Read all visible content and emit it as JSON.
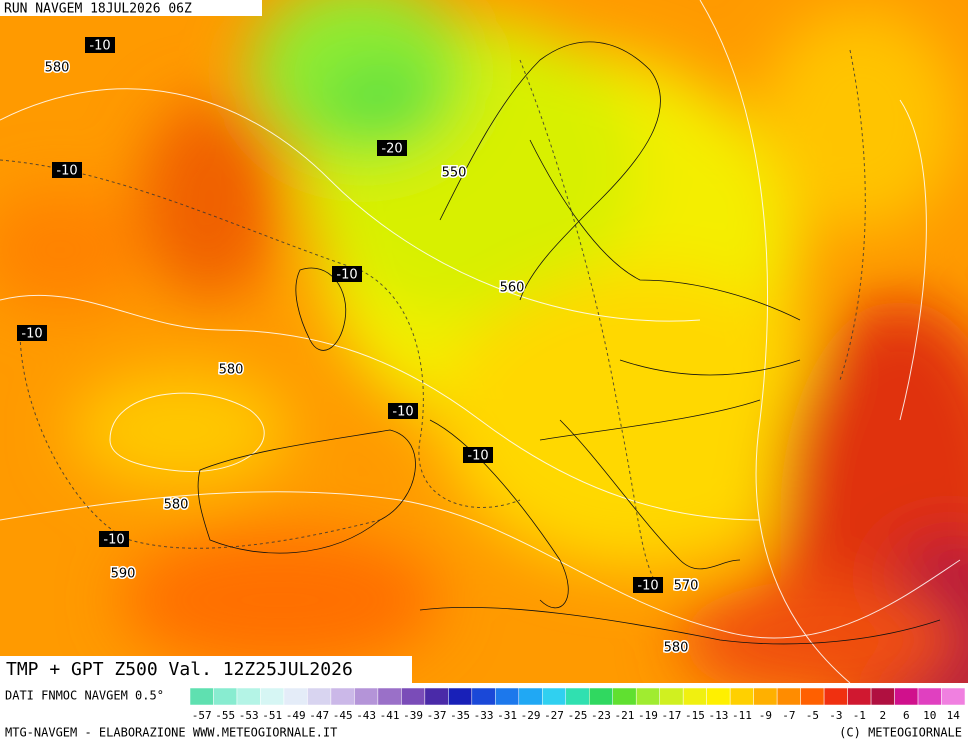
{
  "header": {
    "run": "RUN NAVGEM 18JUL2026 06Z"
  },
  "map": {
    "temperature_labels": [
      -10,
      -10,
      -20,
      -10,
      -10,
      -10,
      -10,
      -10,
      -10
    ],
    "height_labels": [
      580,
      550,
      560,
      580,
      580,
      590,
      570,
      580
    ]
  },
  "title": "TMP + GPT Z500 Val. 12Z25JUL2026",
  "legend": {
    "source": "DATI FNMOC NAVGEM 0.5°",
    "labels": [
      -57,
      -55,
      -53,
      -51,
      -49,
      -47,
      -45,
      -43,
      -41,
      -39,
      -37,
      -35,
      -33,
      -31,
      -29,
      -27,
      -25,
      -23,
      -21,
      -19,
      -17,
      -15,
      -13,
      -11,
      -9,
      -7,
      -5,
      -3,
      -1,
      2,
      6,
      10,
      14
    ],
    "colors": [
      "#5fe0b0",
      "#88ecd0",
      "#b4f4e6",
      "#d6f6f4",
      "#e4ecf8",
      "#d8d4f0",
      "#cbb8e8",
      "#b494d8",
      "#9a70c8",
      "#7a4cb8",
      "#4a2aa8",
      "#1820b8",
      "#1a48d8",
      "#1c78ec",
      "#20a8f4",
      "#30d0f0",
      "#30e0b0",
      "#30d860",
      "#60e030",
      "#a0ec30",
      "#d0f020",
      "#f0f010",
      "#fff000",
      "#ffd000",
      "#ffb000",
      "#ff8c00",
      "#ff6000",
      "#f03010",
      "#d01830",
      "#b01040",
      "#d0108c",
      "#e040c0",
      "#f080e0"
    ]
  },
  "footer": {
    "left": "MTG-NAVGEM - ELABORAZIONE WWW.METEOGIORNALE.IT",
    "right": "(C) METEOGIORNALE"
  }
}
